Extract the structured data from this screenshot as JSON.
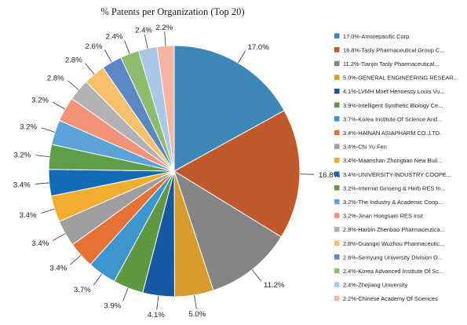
{
  "chart_data": {
    "type": "pie",
    "title": "% Patents per Organization (Top 20)",
    "legend_position": "right",
    "slices": [
      {
        "pct_label": "17.0%",
        "legend": "17.0%-Amorepacific Corp.",
        "value": 17.0,
        "color": "#3c87b7"
      },
      {
        "pct_label": "16.8%",
        "legend": "16.8%-Tasly Pharmaceutical Group C...",
        "value": 16.8,
        "color": "#c2592c"
      },
      {
        "pct_label": "11.2%",
        "legend": "11.2%-Tianjin Tasly Pharmaceutical...",
        "value": 11.2,
        "color": "#858585"
      },
      {
        "pct_label": "5.0%",
        "legend": "5.0%-GENERAL ENGINEERING RESEAR...",
        "value": 5.0,
        "color": "#d9992c"
      },
      {
        "pct_label": "4.1%",
        "legend": "4.1%-LVMH Moet Hennessy Louis Vu...",
        "value": 4.1,
        "color": "#1559a3"
      },
      {
        "pct_label": "3.9%",
        "legend": "3.9%-Intelligent Synthetic Biology Ce...",
        "value": 3.9,
        "color": "#5f9743"
      },
      {
        "pct_label": "3.7%",
        "legend": "3.7%-Korea Institute Of Science And...",
        "value": 3.7,
        "color": "#3d95cd"
      },
      {
        "pct_label": "3.4%",
        "legend": "3.4%-HAINAN ASIAPHARM CO.,LTD.",
        "value": 3.4,
        "color": "#e57234"
      },
      {
        "pct_label": "3.4%",
        "legend": "3.4%-Chi Yu Fen",
        "value": 3.4,
        "color": "#9e9e9e"
      },
      {
        "pct_label": "3.4%",
        "legend": "3.4%-Maanshan Zhongtian New Buil...",
        "value": 3.4,
        "color": "#f0ad2e"
      },
      {
        "pct_label": "3.4%",
        "legend": "3.4%-UNIVERSITY-INDUSTRY COOPE...",
        "value": 3.4,
        "color": "#126bb7"
      },
      {
        "pct_label": "3.2%",
        "legend": "3.2%-Internat Ginseng & Herb RES In...",
        "value": 3.2,
        "color": "#5f9e48"
      },
      {
        "pct_label": "3.2%",
        "legend": "3.2%-The Industry & Academic Coop...",
        "value": 3.2,
        "color": "#5ba2d6"
      },
      {
        "pct_label": "3.2%",
        "legend": "3.2%-Jinan Hongsam RES Inst",
        "value": 3.2,
        "color": "#f19279"
      },
      {
        "pct_label": "2.8%",
        "legend": "2.8%-Harbin Zhenbao Pharmaceutica...",
        "value": 2.8,
        "color": "#b2b2b2"
      },
      {
        "pct_label": "2.8%",
        "legend": "2.8%-Guangxi Wuzhou Pharmaceutic...",
        "value": 2.8,
        "color": "#f6c16a"
      },
      {
        "pct_label": "2.6%",
        "legend": "2.6%-Semyung University Division O...",
        "value": 2.6,
        "color": "#5b87c6"
      },
      {
        "pct_label": "2.4%",
        "legend": "2.4%-Korea Advanced Institute Of Sc...",
        "value": 2.4,
        "color": "#8fbb6f"
      },
      {
        "pct_label": "2.4%",
        "legend": "2.4%-Zhejiang University",
        "value": 2.4,
        "color": "#a9c8e8"
      },
      {
        "pct_label": "2.2%",
        "legend": "2.2%-Chinese Academy Of Sciences",
        "value": 2.2,
        "color": "#f4b6a2"
      }
    ]
  }
}
